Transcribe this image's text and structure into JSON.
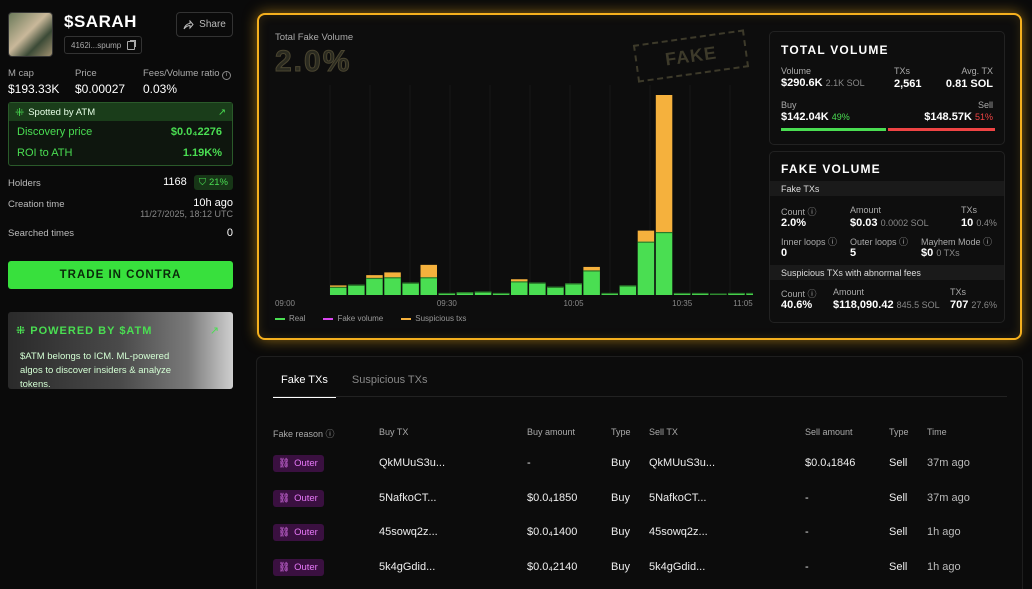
{
  "token": {
    "ticker": "$SARAH",
    "address_short": "4162i...spump",
    "share_label": "Share"
  },
  "stats": {
    "mcap_label": "M cap",
    "mcap_value": "$193.33K",
    "price_label": "Price",
    "price_value": "$0.00027",
    "fee_ratio_label": "Fees/Volume ratio",
    "fee_ratio_value": "0.03%"
  },
  "spotted": {
    "title": "Spotted by ATM",
    "discovery_label": "Discovery price",
    "discovery_value": "$0.0₄2276",
    "roi_label": "ROI to ATH",
    "roi_value": "1.19K%"
  },
  "info": {
    "holders_label": "Holders",
    "holders_value": "1168",
    "holders_badge": "21%",
    "creation_label": "Creation time",
    "creation_value": "10h ago",
    "creation_date": "11/27/2025, 18:12 UTC",
    "searched_label": "Searched times",
    "searched_value": "0"
  },
  "trade_button": "TRADE IN CONTRA",
  "promo": {
    "title": "POWERED BY $ATM",
    "text": "$ATM belongs to ICM. ML-powered algos to discover insiders & analyze tokens."
  },
  "chart": {
    "title": "Total Fake Volume",
    "big_value": "2.0%",
    "stamp": "FAKE",
    "legend": [
      {
        "label": "Real",
        "color": "#4ade52"
      },
      {
        "label": "Fake volume",
        "color": "#d946ef"
      },
      {
        "label": "Suspicious txs",
        "color": "#f5b13d"
      }
    ]
  },
  "chart_data": {
    "type": "bar",
    "x_ticks": [
      "09:00",
      "09:30",
      "10:05",
      "10:35",
      "11:05"
    ],
    "categories": [
      "09:00",
      "09:05",
      "09:10",
      "09:15",
      "09:20",
      "09:25",
      "09:30",
      "09:35",
      "09:40",
      "09:45",
      "09:50",
      "09:55",
      "10:00",
      "10:05",
      "10:10",
      "10:15",
      "10:20",
      "10:25",
      "10:30",
      "10:35",
      "10:40",
      "10:45",
      "10:50",
      "10:55",
      "11:00",
      "11:05"
    ],
    "series": [
      {
        "name": "Real",
        "values": [
          1.2,
          1.5,
          2.5,
          2.6,
          1.8,
          2.6,
          0.3,
          0.4,
          0.5,
          0.3,
          2.0,
          1.8,
          1.2,
          1.7,
          3.6,
          0.3,
          1.4,
          7.8,
          9.2,
          0.3,
          0.3,
          0.2,
          0.3,
          0.3,
          0.4,
          0.2
        ]
      },
      {
        "name": "Fake volume",
        "values": [
          0,
          0,
          0,
          0,
          0,
          0,
          0,
          0,
          0,
          0,
          0,
          0,
          0,
          0,
          0,
          0,
          0,
          0,
          0,
          0,
          0,
          0,
          0,
          0,
          0,
          0
        ]
      },
      {
        "name": "Suspicious txs",
        "values": [
          0.2,
          0,
          0.4,
          0.7,
          0,
          1.8,
          0,
          0,
          0,
          0,
          0.3,
          0,
          0,
          0,
          0.5,
          0,
          0,
          1.6,
          20.0,
          0,
          0,
          0,
          0,
          0,
          0,
          0
        ]
      }
    ]
  },
  "total_volume": {
    "title": "TOTAL VOLUME",
    "volume_label": "Volume",
    "volume_value": "$290.6K",
    "volume_sub": "2.1K SOL",
    "txs_label": "TXs",
    "txs_value": "2,561",
    "avg_label": "Avg. TX",
    "avg_value": "0.81 SOL",
    "buy_label": "Buy",
    "buy_value": "$142.04K",
    "buy_pct": "49%",
    "sell_label": "Sell",
    "sell_value": "$148.57K",
    "sell_pct": "51%",
    "buy_ratio": 0.49
  },
  "fake_volume": {
    "title": "FAKE VOLUME",
    "fake_txs_header": "Fake TXs",
    "count_label": "Count",
    "count_value": "2.0%",
    "amount_label": "Amount",
    "amount_value": "$0.03",
    "amount_sub": "0.0002 SOL",
    "txs_label": "TXs",
    "txs_value": "10",
    "txs_sub": "0.4%",
    "inner_label": "Inner loops",
    "inner_value": "0",
    "outer_label": "Outer loops",
    "outer_value": "5",
    "mayhem_label": "Mayhem Mode",
    "mayhem_value": "$0",
    "mayhem_sub": "0 TXs",
    "suspicious_header": "Suspicious TXs with abnormal fees",
    "s_count_label": "Count",
    "s_count_value": "40.6%",
    "s_amount_label": "Amount",
    "s_amount_value": "$118,090.42",
    "s_amount_sub": "845.5 SOL",
    "s_txs_label": "TXs",
    "s_txs_value": "707",
    "s_txs_sub": "27.6%"
  },
  "table": {
    "tabs": [
      "Fake TXs",
      "Suspicious TXs"
    ],
    "headers": [
      "Fake reason",
      "Buy TX",
      "Buy amount",
      "Type",
      "Sell TX",
      "Sell amount",
      "Type",
      "Time"
    ],
    "rows": [
      {
        "reason": "Outer",
        "buy_tx": "QkMUuS3u...",
        "buy_amount": "-",
        "buy_type": "Buy",
        "sell_tx": "QkMUuS3u...",
        "sell_amount": "$0.0₄1846",
        "sell_type": "Sell",
        "time": "37m ago"
      },
      {
        "reason": "Outer",
        "buy_tx": "5NafkoCT...",
        "buy_amount": "$0.0₄1850",
        "buy_type": "Buy",
        "sell_tx": "5NafkoCT...",
        "sell_amount": "-",
        "sell_type": "Sell",
        "time": "37m ago"
      },
      {
        "reason": "Outer",
        "buy_tx": "45sowq2z...",
        "buy_amount": "$0.0₄1400",
        "buy_type": "Buy",
        "sell_tx": "45sowq2z...",
        "sell_amount": "-",
        "sell_type": "Sell",
        "time": "1h ago"
      },
      {
        "reason": "Outer",
        "buy_tx": "5k4gGdid...",
        "buy_amount": "$0.0₄2140",
        "buy_type": "Buy",
        "sell_tx": "5k4gGdid...",
        "sell_amount": "-",
        "sell_type": "Sell",
        "time": "1h ago"
      }
    ]
  }
}
